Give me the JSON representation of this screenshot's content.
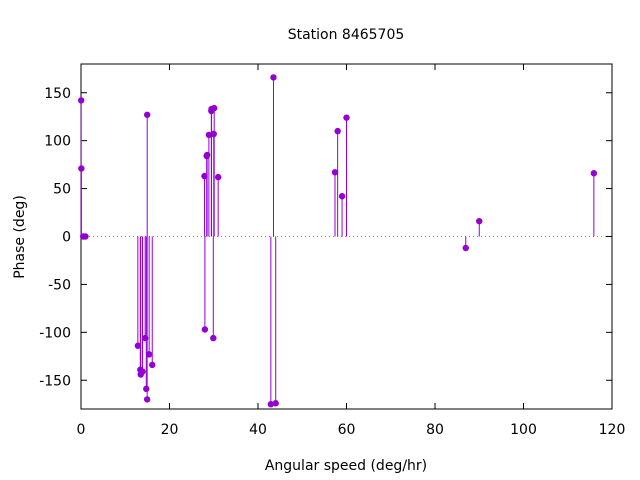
{
  "chart_data": {
    "type": "scatter",
    "style": "impulses-with-points",
    "title": "Station 8465705",
    "xlabel": "Angular speed (deg/hr)",
    "ylabel": "Phase (deg)",
    "xlim": [
      0,
      120
    ],
    "ylim": [
      -180,
      180
    ],
    "xticks": [
      0,
      20,
      40,
      60,
      80,
      100,
      120
    ],
    "yticks": [
      -150,
      -100,
      -50,
      0,
      50,
      100,
      150
    ],
    "grid": false,
    "color": "#9400d3",
    "points": [
      {
        "x": 0.04,
        "y": 142
      },
      {
        "x": 0.08,
        "y": 71
      },
      {
        "x": 0.5,
        "y": 0
      },
      {
        "x": 1.0,
        "y": 0
      },
      {
        "x": 12.85,
        "y": -114
      },
      {
        "x": 13.4,
        "y": -139
      },
      {
        "x": 13.5,
        "y": -144
      },
      {
        "x": 13.9,
        "y": -141
      },
      {
        "x": 14.5,
        "y": -106
      },
      {
        "x": 14.75,
        "y": -159
      },
      {
        "x": 14.95,
        "y": -170
      },
      {
        "x": 14.96,
        "y": 127
      },
      {
        "x": 15.4,
        "y": -123
      },
      {
        "x": 16.1,
        "y": -134
      },
      {
        "x": 27.9,
        "y": 63
      },
      {
        "x": 28.0,
        "y": -97
      },
      {
        "x": 28.4,
        "y": 84
      },
      {
        "x": 28.5,
        "y": 85
      },
      {
        "x": 28.9,
        "y": 106
      },
      {
        "x": 29.45,
        "y": 131
      },
      {
        "x": 29.5,
        "y": 133
      },
      {
        "x": 29.9,
        "y": -106
      },
      {
        "x": 30.0,
        "y": 107
      },
      {
        "x": 30.1,
        "y": 134
      },
      {
        "x": 31.0,
        "y": 62
      },
      {
        "x": 42.9,
        "y": -175
      },
      {
        "x": 43.5,
        "y": 166
      },
      {
        "x": 44.0,
        "y": -174
      },
      {
        "x": 57.4,
        "y": 67
      },
      {
        "x": 58.0,
        "y": 110
      },
      {
        "x": 59.0,
        "y": 42
      },
      {
        "x": 60.0,
        "y": 124
      },
      {
        "x": 86.95,
        "y": -12
      },
      {
        "x": 90.0,
        "y": 16
      },
      {
        "x": 115.9,
        "y": 66
      }
    ]
  }
}
